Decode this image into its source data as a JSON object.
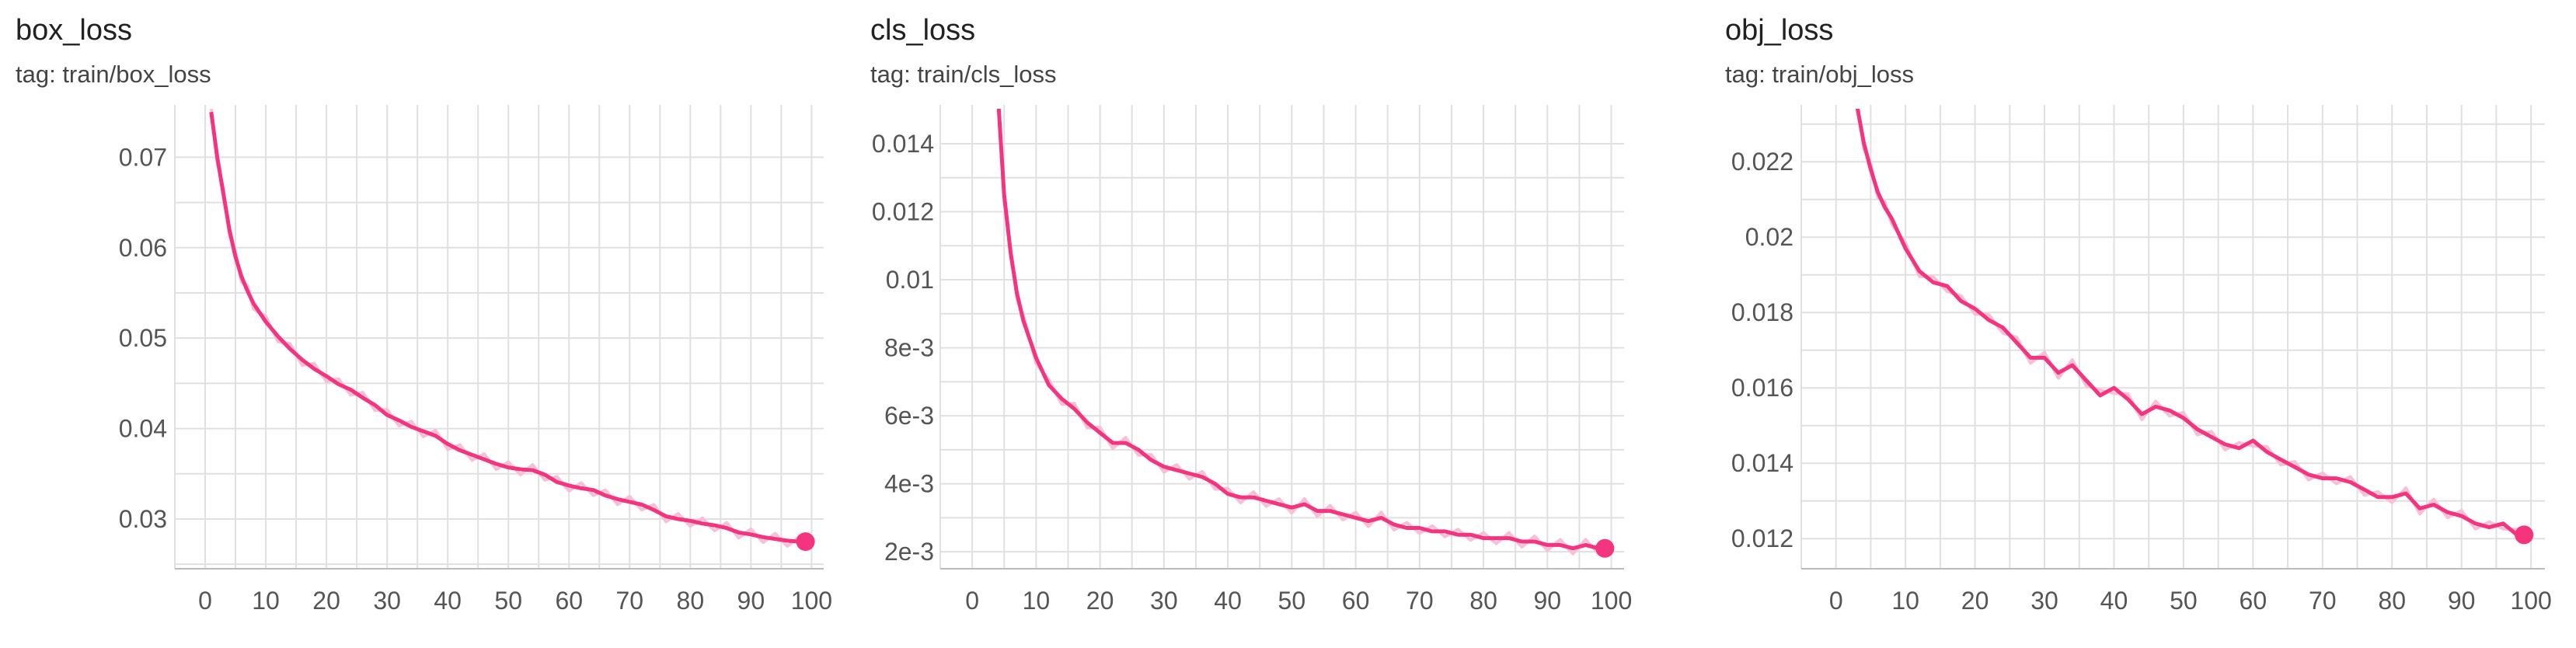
{
  "theme": {
    "line_color": "#f5347f",
    "raw_color": "#f8bfd6",
    "grid_color": "#e0e0e0"
  },
  "chart_data": [
    {
      "type": "line",
      "title": "box_loss",
      "subtitle": "tag: train/box_loss",
      "xlim": [
        -5,
        102
      ],
      "ylim": [
        0.0245,
        0.0745
      ],
      "xticks": [
        0,
        10,
        20,
        30,
        40,
        50,
        60,
        70,
        80,
        90,
        100
      ],
      "yticks": [
        0.03,
        0.04,
        0.05,
        0.06,
        0.07
      ],
      "ytick_labels": [
        "0.03",
        "0.04",
        "0.05",
        "0.06",
        "0.07"
      ],
      "series": [
        {
          "x": [
            1,
            2,
            3,
            4,
            5,
            6,
            7,
            8,
            10,
            12,
            14,
            16,
            18,
            20,
            22,
            24,
            26,
            28,
            30,
            32,
            34,
            36,
            38,
            40,
            42,
            44,
            46,
            48,
            50,
            52,
            54,
            56,
            58,
            60,
            62,
            64,
            66,
            68,
            70,
            72,
            74,
            76,
            78,
            80,
            82,
            84,
            86,
            88,
            90,
            92,
            94,
            96,
            98,
            99
          ],
          "y": [
            0.075,
            0.07,
            0.066,
            0.062,
            0.059,
            0.0568,
            0.0552,
            0.0538,
            0.0518,
            0.0502,
            0.0488,
            0.0476,
            0.0466,
            0.0458,
            0.0449,
            0.0443,
            0.0434,
            0.0426,
            0.0415,
            0.0409,
            0.0402,
            0.0397,
            0.0392,
            0.0383,
            0.0376,
            0.0371,
            0.0366,
            0.0361,
            0.0357,
            0.0355,
            0.0354,
            0.0349,
            0.0341,
            0.0337,
            0.0334,
            0.0332,
            0.0326,
            0.0322,
            0.0319,
            0.0316,
            0.031,
            0.0303,
            0.03,
            0.0298,
            0.0295,
            0.0293,
            0.029,
            0.0285,
            0.0283,
            0.028,
            0.0278,
            0.0276,
            0.0275,
            0.0275
          ]
        }
      ]
    },
    {
      "type": "line",
      "title": "cls_loss",
      "subtitle": "tag: train/cls_loss",
      "xlim": [
        -5,
        102
      ],
      "ylim": [
        0.0015,
        0.0148
      ],
      "xticks": [
        0,
        10,
        20,
        30,
        40,
        50,
        60,
        70,
        80,
        90,
        100
      ],
      "yticks": [
        0.002,
        0.004,
        0.006,
        0.008,
        0.01,
        0.012,
        0.014
      ],
      "ytick_labels": [
        "2e-3",
        "4e-3",
        "6e-3",
        "8e-3",
        "0.01",
        "0.012",
        "0.014"
      ],
      "series": [
        {
          "x": [
            4,
            5,
            6,
            7,
            8,
            10,
            12,
            14,
            16,
            18,
            20,
            22,
            24,
            26,
            28,
            30,
            32,
            34,
            36,
            38,
            40,
            42,
            44,
            46,
            48,
            50,
            52,
            54,
            56,
            58,
            60,
            62,
            64,
            66,
            68,
            70,
            72,
            74,
            76,
            78,
            80,
            82,
            84,
            86,
            88,
            90,
            92,
            94,
            96,
            98,
            99
          ],
          "y": [
            0.0155,
            0.0125,
            0.0108,
            0.0096,
            0.0088,
            0.0077,
            0.0069,
            0.0065,
            0.0062,
            0.0058,
            0.0055,
            0.0052,
            0.0052,
            0.005,
            0.0047,
            0.0045,
            0.0044,
            0.0043,
            0.0042,
            0.004,
            0.0037,
            0.0036,
            0.0036,
            0.0035,
            0.0034,
            0.0033,
            0.0034,
            0.0032,
            0.0032,
            0.0031,
            0.003,
            0.0029,
            0.003,
            0.0028,
            0.0027,
            0.0027,
            0.0026,
            0.0026,
            0.0025,
            0.0025,
            0.0024,
            0.0024,
            0.0024,
            0.0023,
            0.0023,
            0.0022,
            0.0022,
            0.0021,
            0.0022,
            0.0021,
            0.0021
          ]
        }
      ]
    },
    {
      "type": "line",
      "title": "obj_loss",
      "subtitle": "tag: train/obj_loss",
      "xlim": [
        -5,
        102
      ],
      "ylim": [
        0.0112,
        0.0232
      ],
      "xticks": [
        0,
        10,
        20,
        30,
        40,
        50,
        60,
        70,
        80,
        90,
        100
      ],
      "yticks": [
        0.012,
        0.014,
        0.016,
        0.018,
        0.02,
        0.022
      ],
      "ytick_labels": [
        "0.012",
        "0.014",
        "0.016",
        "0.018",
        "0.02",
        "0.022"
      ],
      "series": [
        {
          "x": [
            3,
            4,
            5,
            6,
            7,
            8,
            10,
            12,
            14,
            16,
            18,
            20,
            22,
            24,
            26,
            28,
            30,
            32,
            34,
            36,
            38,
            40,
            42,
            44,
            46,
            48,
            50,
            52,
            54,
            56,
            58,
            60,
            62,
            64,
            66,
            68,
            70,
            72,
            74,
            76,
            78,
            80,
            82,
            84,
            86,
            88,
            90,
            92,
            94,
            96,
            98,
            99
          ],
          "y": [
            0.0235,
            0.0225,
            0.0218,
            0.0212,
            0.0208,
            0.0205,
            0.0197,
            0.0191,
            0.0188,
            0.0187,
            0.0183,
            0.0181,
            0.0178,
            0.0176,
            0.0172,
            0.0168,
            0.0168,
            0.0164,
            0.0166,
            0.0162,
            0.0158,
            0.016,
            0.0157,
            0.0153,
            0.0155,
            0.0154,
            0.0152,
            0.0149,
            0.0147,
            0.0145,
            0.0144,
            0.0146,
            0.0143,
            0.0141,
            0.0139,
            0.0137,
            0.0136,
            0.0136,
            0.0135,
            0.0133,
            0.0131,
            0.0131,
            0.0132,
            0.0128,
            0.0129,
            0.0127,
            0.0126,
            0.0124,
            0.0123,
            0.0124,
            0.0121,
            0.0121
          ]
        }
      ]
    }
  ]
}
